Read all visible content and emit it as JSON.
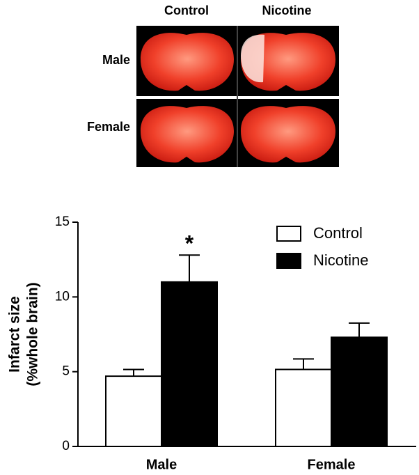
{
  "image_panel": {
    "columns": [
      "Control",
      "Nicotine"
    ],
    "rows": [
      "Male",
      "Female"
    ]
  },
  "chart_data": {
    "type": "bar",
    "ylabel": [
      "Infarct size",
      "(%whole brain)"
    ],
    "categories": [
      "Male",
      "Female"
    ],
    "series": [
      {
        "name": "Control",
        "color": "#ffffff",
        "values": [
          4.7,
          5.15
        ],
        "errors": [
          0.45,
          0.7
        ]
      },
      {
        "name": "Nicotine",
        "color": "#000000",
        "values": [
          11.0,
          7.3
        ],
        "errors": [
          1.8,
          0.95
        ]
      }
    ],
    "annotation": "*",
    "ylim": [
      0,
      15
    ],
    "yticks": [
      0,
      5,
      10,
      15
    ],
    "legend": "upper right"
  }
}
